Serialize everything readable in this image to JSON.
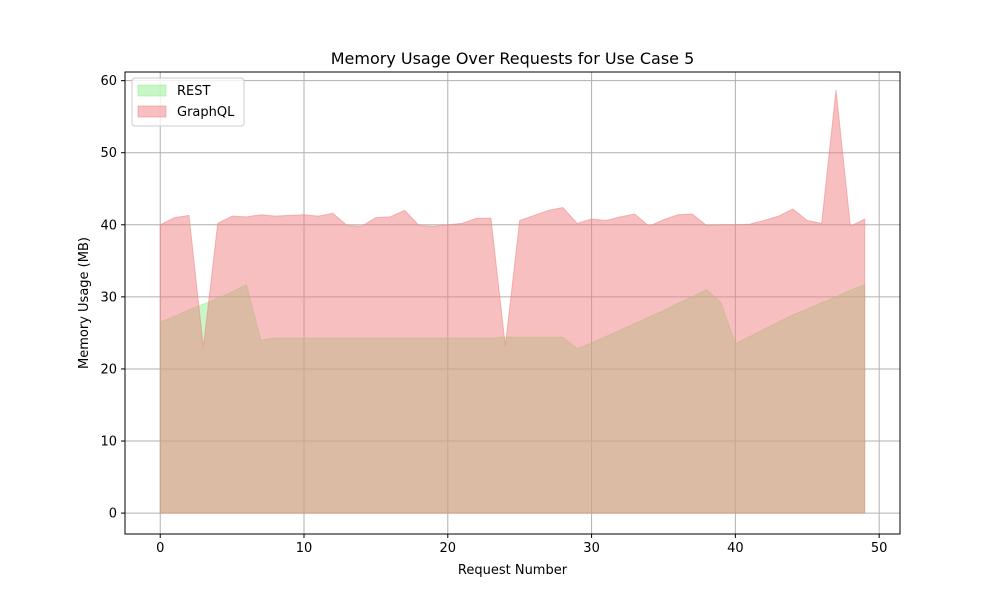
{
  "chart_data": {
    "type": "area",
    "title": "Memory Usage Over Requests for Use Case 5",
    "xlabel": "Request Number",
    "ylabel": "Memory Usage (MB)",
    "xlim": [
      -2.45,
      51.45
    ],
    "ylim": [
      -2.9,
      61.2
    ],
    "xticks": [
      0,
      10,
      20,
      30,
      40,
      50
    ],
    "yticks": [
      0,
      10,
      20,
      30,
      40,
      50,
      60
    ],
    "grid": true,
    "legend_position": "top-left",
    "x": [
      0,
      1,
      2,
      3,
      4,
      5,
      6,
      7,
      8,
      9,
      10,
      11,
      12,
      13,
      14,
      15,
      16,
      17,
      18,
      19,
      20,
      21,
      22,
      23,
      24,
      25,
      26,
      27,
      28,
      29,
      30,
      31,
      32,
      33,
      34,
      35,
      36,
      37,
      38,
      39,
      40,
      41,
      42,
      43,
      44,
      45,
      46,
      47,
      48,
      49
    ],
    "series": [
      {
        "name": "REST",
        "color": "#90ee90",
        "values": [
          26.5,
          27.3,
          28.2,
          29.0,
          29.8,
          30.7,
          31.7,
          24.0,
          24.3,
          24.3,
          24.3,
          24.3,
          24.3,
          24.3,
          24.3,
          24.3,
          24.3,
          24.3,
          24.3,
          24.3,
          24.3,
          24.3,
          24.3,
          24.3,
          24.4,
          24.4,
          24.4,
          24.4,
          24.4,
          22.8,
          23.6,
          24.5,
          25.4,
          26.3,
          27.2,
          28.1,
          29.1,
          30.0,
          31.0,
          29.2,
          23.5,
          24.5,
          25.5,
          26.5,
          27.5,
          28.3,
          29.2,
          30.0,
          30.9,
          31.7
        ]
      },
      {
        "name": "GraphQL",
        "color": "#f08080",
        "values": [
          40.0,
          41.0,
          41.3,
          23.0,
          40.2,
          41.2,
          41.1,
          41.4,
          41.2,
          41.3,
          41.4,
          41.2,
          41.6,
          39.9,
          39.8,
          41.0,
          41.1,
          42.0,
          39.9,
          39.8,
          40.0,
          40.2,
          40.9,
          40.9,
          23.2,
          40.6,
          41.3,
          42.0,
          42.4,
          40.2,
          40.8,
          40.6,
          41.1,
          41.5,
          39.8,
          40.7,
          41.4,
          41.5,
          39.9,
          40.0,
          40.0,
          40.1,
          40.6,
          41.2,
          42.2,
          40.6,
          40.2,
          58.7,
          39.8,
          40.8
        ]
      }
    ]
  }
}
